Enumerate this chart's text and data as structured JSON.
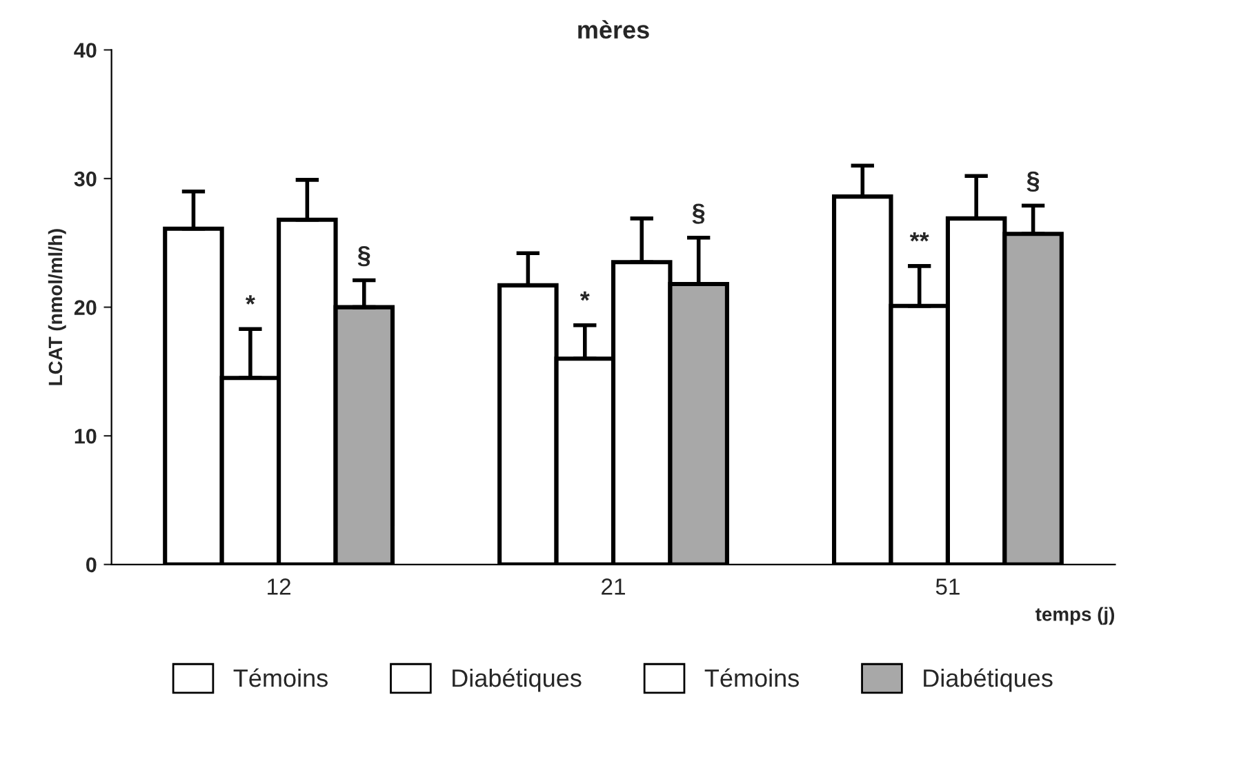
{
  "chart_data": {
    "type": "bar",
    "title": "mères",
    "ylabel": "LCAT (nmol/ml/h)",
    "xlabel": "temps (j)",
    "categories": [
      "12",
      "21",
      "51"
    ],
    "series": [
      {
        "name": "Témoins",
        "color": "#ffffff",
        "values": [
          26.1,
          21.7,
          28.6
        ],
        "errors": [
          [
            26.1,
            29.0
          ],
          [
            21.7,
            24.2
          ],
          [
            28.6,
            31.0
          ]
        ]
      },
      {
        "name": "Diabétiques",
        "color": "#ffffff",
        "values": [
          14.5,
          16.0,
          20.1
        ],
        "errors": [
          [
            14.5,
            18.3
          ],
          [
            16.0,
            18.6
          ],
          [
            20.1,
            23.2
          ]
        ],
        "value_labels": [
          "*",
          "*",
          "**"
        ]
      },
      {
        "name": "Témoins",
        "color": "#ffffff",
        "values": [
          26.8,
          23.5,
          26.9
        ],
        "errors": [
          [
            26.8,
            29.9
          ],
          [
            23.5,
            26.9
          ],
          [
            26.9,
            30.2
          ]
        ]
      },
      {
        "name": "Diabétiques",
        "color": "#a8a8a8",
        "values": [
          20.0,
          21.8,
          25.7
        ],
        "errors": [
          [
            20.0,
            22.1
          ],
          [
            21.8,
            25.4
          ],
          [
            25.7,
            27.9
          ]
        ],
        "value_labels": [
          "§",
          "§",
          "§"
        ]
      }
    ],
    "ylim": [
      0,
      40
    ],
    "yticks": [
      0,
      10,
      20,
      30,
      40
    ],
    "grid": false,
    "legend": "bottom"
  }
}
